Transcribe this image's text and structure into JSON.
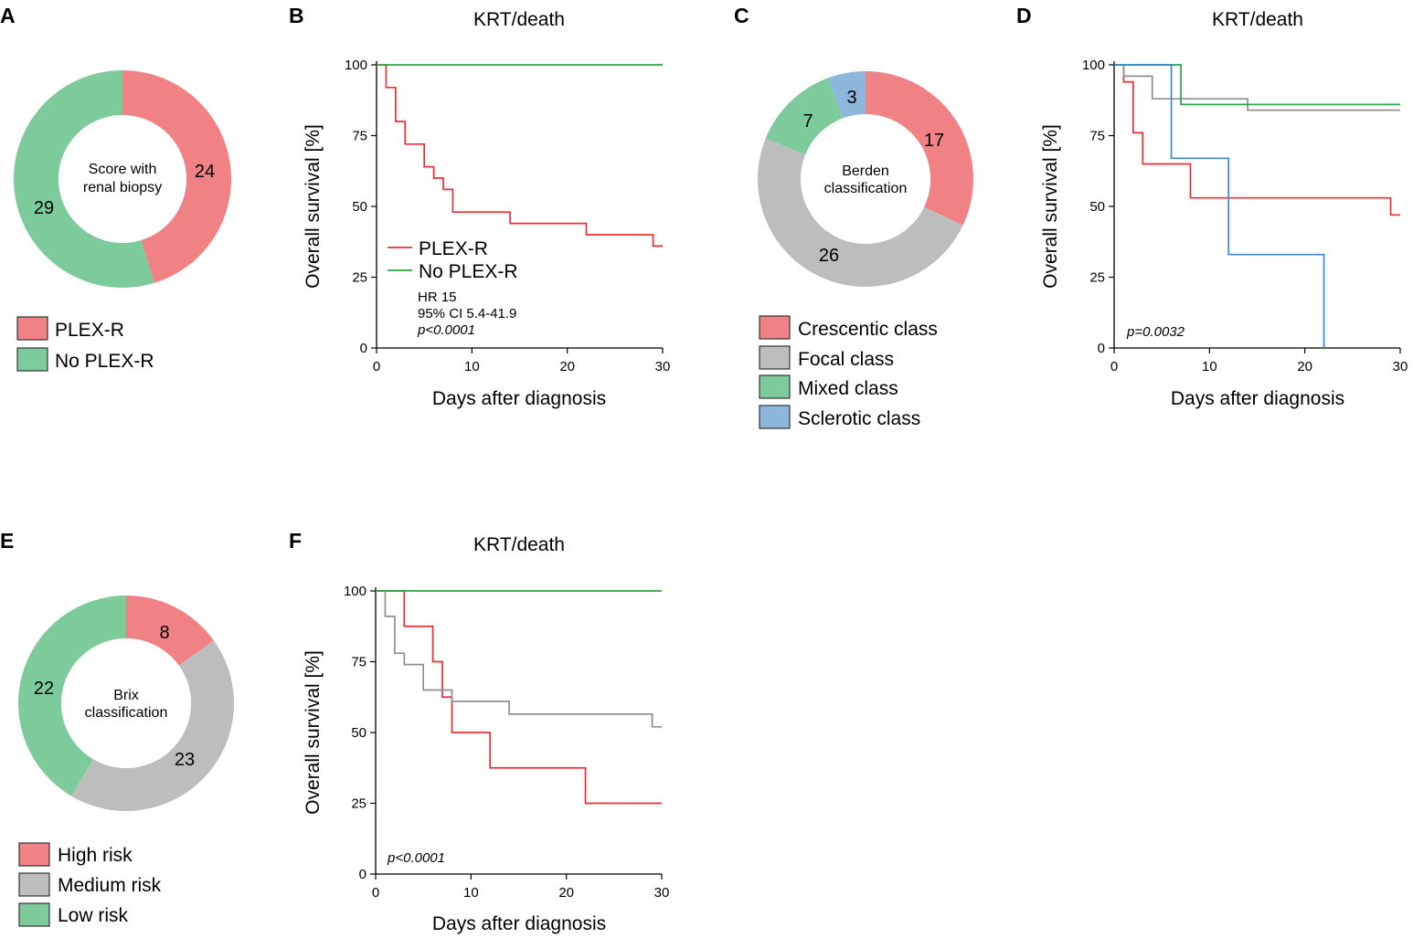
{
  "colors": {
    "red": "#ee2e34",
    "green": "#28a745",
    "gray": "#909090",
    "blue": "#3a89d0",
    "pie_red": "#f08184",
    "pie_green": "#7dcb9b",
    "pie_gray": "#bdbdbd",
    "pie_blue": "#8cb6dc",
    "axis": "#000000"
  },
  "chart_data": [
    {
      "panel": "A",
      "type": "pie",
      "center_text": [
        "Score with",
        "renal biopsy"
      ],
      "slices": [
        {
          "label": "PLEX-R",
          "value": 24,
          "color": "#f08184"
        },
        {
          "label": "No PLEX-R",
          "value": 29,
          "color": "#7dcb9b"
        }
      ],
      "legend": [
        "PLEX-R",
        "No PLEX-R"
      ]
    },
    {
      "panel": "B",
      "type": "line",
      "title": "KRT/death",
      "xlabel": "Days after diagnosis",
      "ylabel": "Overall survival [%]",
      "xlim": [
        0,
        30
      ],
      "ylim": [
        0,
        100
      ],
      "xticks": [
        0,
        10,
        20,
        30
      ],
      "yticks": [
        0,
        25,
        50,
        75,
        100
      ],
      "series": [
        {
          "name": "PLEX-R",
          "color": "#ee2e34",
          "x": [
            0,
            1,
            2,
            3,
            5,
            6,
            7,
            8,
            14,
            22,
            29,
            30
          ],
          "y": [
            100,
            92,
            80,
            72,
            64,
            60,
            56,
            48,
            44,
            40,
            36,
            36
          ]
        },
        {
          "name": "No PLEX-R",
          "color": "#28a745",
          "x": [
            0,
            30
          ],
          "y": [
            100,
            100
          ]
        }
      ],
      "annotations": [
        "HR 15",
        "95% CI 5.4-41.9",
        "p<0.0001"
      ]
    },
    {
      "panel": "C",
      "type": "pie",
      "center_text": [
        "Berden",
        "classification"
      ],
      "slices": [
        {
          "label": "Crescentic class",
          "value": 17,
          "color": "#f08184"
        },
        {
          "label": "Focal class",
          "value": 26,
          "color": "#bdbdbd"
        },
        {
          "label": "Mixed class",
          "value": 7,
          "color": "#7dcb9b"
        },
        {
          "label": "Sclerotic class",
          "value": 3,
          "color": "#8cb6dc"
        }
      ],
      "legend": [
        "Crescentic class",
        "Focal class",
        "Mixed class",
        "Sclerotic class"
      ]
    },
    {
      "panel": "D",
      "type": "line",
      "title": "KRT/death",
      "xlabel": "Days after diagnosis",
      "ylabel": "Overall survival [%]",
      "xlim": [
        0,
        30
      ],
      "ylim": [
        0,
        100
      ],
      "xticks": [
        0,
        10,
        20,
        30
      ],
      "yticks": [
        0,
        25,
        50,
        75,
        100
      ],
      "series": [
        {
          "name": "Crescentic class",
          "color": "#ee2e34",
          "x": [
            0,
            1,
            2,
            3,
            8,
            29,
            30
          ],
          "y": [
            100,
            94,
            76,
            65,
            53,
            47,
            47
          ]
        },
        {
          "name": "Focal class",
          "color": "#909090",
          "x": [
            0,
            1,
            4,
            14,
            30
          ],
          "y": [
            100,
            96,
            88,
            84,
            84
          ]
        },
        {
          "name": "Mixed class",
          "color": "#28a745",
          "x": [
            0,
            7,
            30
          ],
          "y": [
            100,
            86,
            86
          ]
        },
        {
          "name": "Sclerotic class",
          "color": "#3a89d0",
          "x": [
            0,
            6,
            12,
            22
          ],
          "y": [
            100,
            67,
            33,
            0
          ]
        }
      ],
      "annotations": [
        "p=0.0032"
      ]
    },
    {
      "panel": "E",
      "type": "pie",
      "center_text": [
        "Brix",
        "classification"
      ],
      "slices": [
        {
          "label": "High risk",
          "value": 8,
          "color": "#f08184"
        },
        {
          "label": "Medium risk",
          "value": 23,
          "color": "#bdbdbd"
        },
        {
          "label": "Low risk",
          "value": 22,
          "color": "#7dcb9b"
        }
      ],
      "legend": [
        "High risk",
        "Medium risk",
        "Low risk"
      ]
    },
    {
      "panel": "F",
      "type": "line",
      "title": "KRT/death",
      "xlabel": "Days after diagnosis",
      "ylabel": "Overall survival [%]",
      "xlim": [
        0,
        30
      ],
      "ylim": [
        0,
        100
      ],
      "xticks": [
        0,
        10,
        20,
        30
      ],
      "yticks": [
        0,
        25,
        50,
        75,
        100
      ],
      "series": [
        {
          "name": "High risk",
          "color": "#ee2e34",
          "x": [
            0,
            3,
            6,
            7,
            8,
            12,
            22,
            30
          ],
          "y": [
            100,
            87.5,
            75,
            62.5,
            50,
            37.5,
            25,
            25
          ]
        },
        {
          "name": "Medium risk",
          "color": "#909090",
          "x": [
            0,
            1,
            2,
            3,
            5,
            8,
            14,
            29,
            30
          ],
          "y": [
            100,
            91,
            78,
            74,
            65,
            61,
            56.5,
            52,
            52
          ]
        },
        {
          "name": "Low risk",
          "color": "#28a745",
          "x": [
            0,
            30
          ],
          "y": [
            100,
            100
          ]
        }
      ],
      "annotations": [
        "p<0.0001"
      ]
    }
  ]
}
